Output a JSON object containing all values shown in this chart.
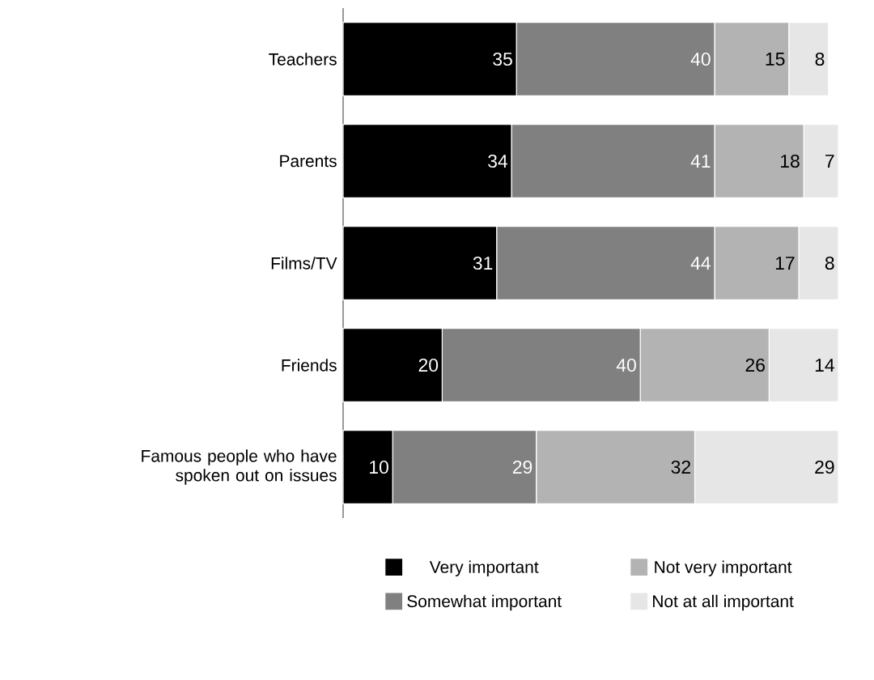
{
  "chart_data": {
    "type": "bar",
    "orientation": "horizontal",
    "stacked": true,
    "data_labels": true,
    "legend": "bottom",
    "categories": [
      "Teachers",
      "Parents",
      "Films/TV",
      "Friends",
      "Famous people who have spoken out on issues"
    ],
    "series": [
      {
        "name": "Very important",
        "color": "#000000",
        "values": [
          35,
          34,
          31,
          20,
          10
        ]
      },
      {
        "name": "Somewhat important",
        "color": "#808080",
        "values": [
          40,
          41,
          44,
          40,
          29
        ]
      },
      {
        "name": "Not very important",
        "color": "#b3b3b3",
        "values": [
          15,
          18,
          17,
          26,
          32
        ]
      },
      {
        "name": "Not at all important",
        "color": "#e6e6e6",
        "values": [
          8,
          7,
          8,
          14,
          29
        ]
      }
    ]
  }
}
